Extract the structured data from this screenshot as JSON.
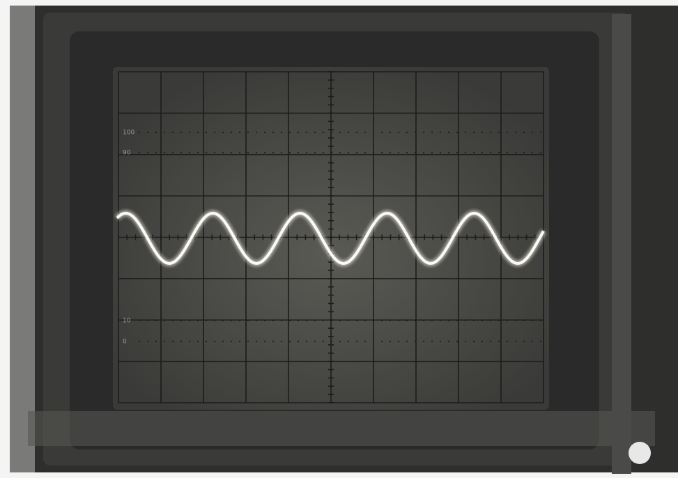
{
  "graticule_labels": [
    "100",
    "90",
    "10",
    "0"
  ]
}
